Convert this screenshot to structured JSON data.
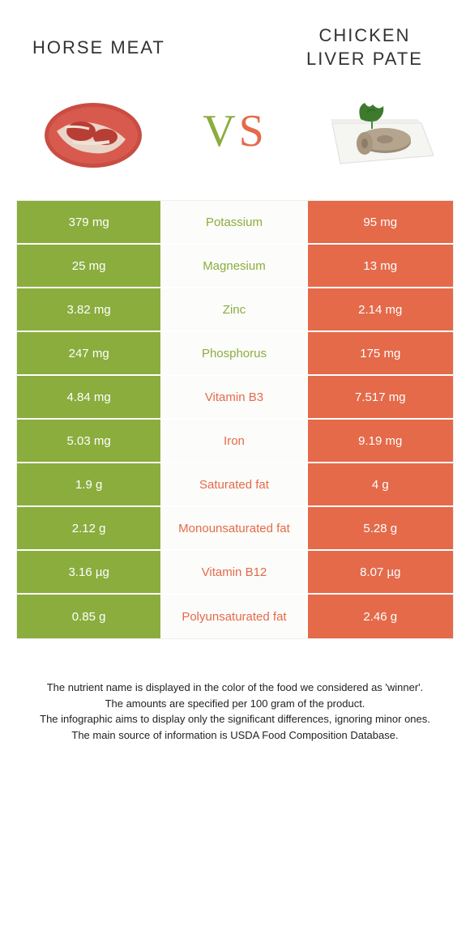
{
  "colors": {
    "green": "#8aad3e",
    "orange": "#e46a4a",
    "mid_bg": "#fcfcfa"
  },
  "header": {
    "left_title": "HORSE MEAT",
    "right_title": "CHICKEN LIVER PATE",
    "vs_v": "V",
    "vs_s": "S"
  },
  "rows": [
    {
      "left": "379 mg",
      "label": "Potassium",
      "right": "95 mg",
      "winner": "left"
    },
    {
      "left": "25 mg",
      "label": "Magnesium",
      "right": "13 mg",
      "winner": "left"
    },
    {
      "left": "3.82 mg",
      "label": "Zinc",
      "right": "2.14 mg",
      "winner": "left"
    },
    {
      "left": "247 mg",
      "label": "Phosphorus",
      "right": "175 mg",
      "winner": "left"
    },
    {
      "left": "4.84 mg",
      "label": "Vitamin B3",
      "right": "7.517 mg",
      "winner": "right"
    },
    {
      "left": "5.03 mg",
      "label": "Iron",
      "right": "9.19 mg",
      "winner": "right"
    },
    {
      "left": "1.9 g",
      "label": "Saturated fat",
      "right": "4 g",
      "winner": "right"
    },
    {
      "left": "2.12 g",
      "label": "Monounsaturated fat",
      "right": "5.28 g",
      "winner": "right"
    },
    {
      "left": "3.16 µg",
      "label": "Vitamin B12",
      "right": "8.07 µg",
      "winner": "right"
    },
    {
      "left": "0.85 g",
      "label": "Polyunsaturated fat",
      "right": "2.46 g",
      "winner": "right"
    }
  ],
  "footer": {
    "line1": "The nutrient name is displayed in the color of the food we considered as 'winner'.",
    "line2": "The amounts are specified per 100 gram of the product.",
    "line3": "The infographic aims to display only the significant differences, ignoring minor ones.",
    "line4": "The main source of information is USDA Food Composition Database."
  }
}
